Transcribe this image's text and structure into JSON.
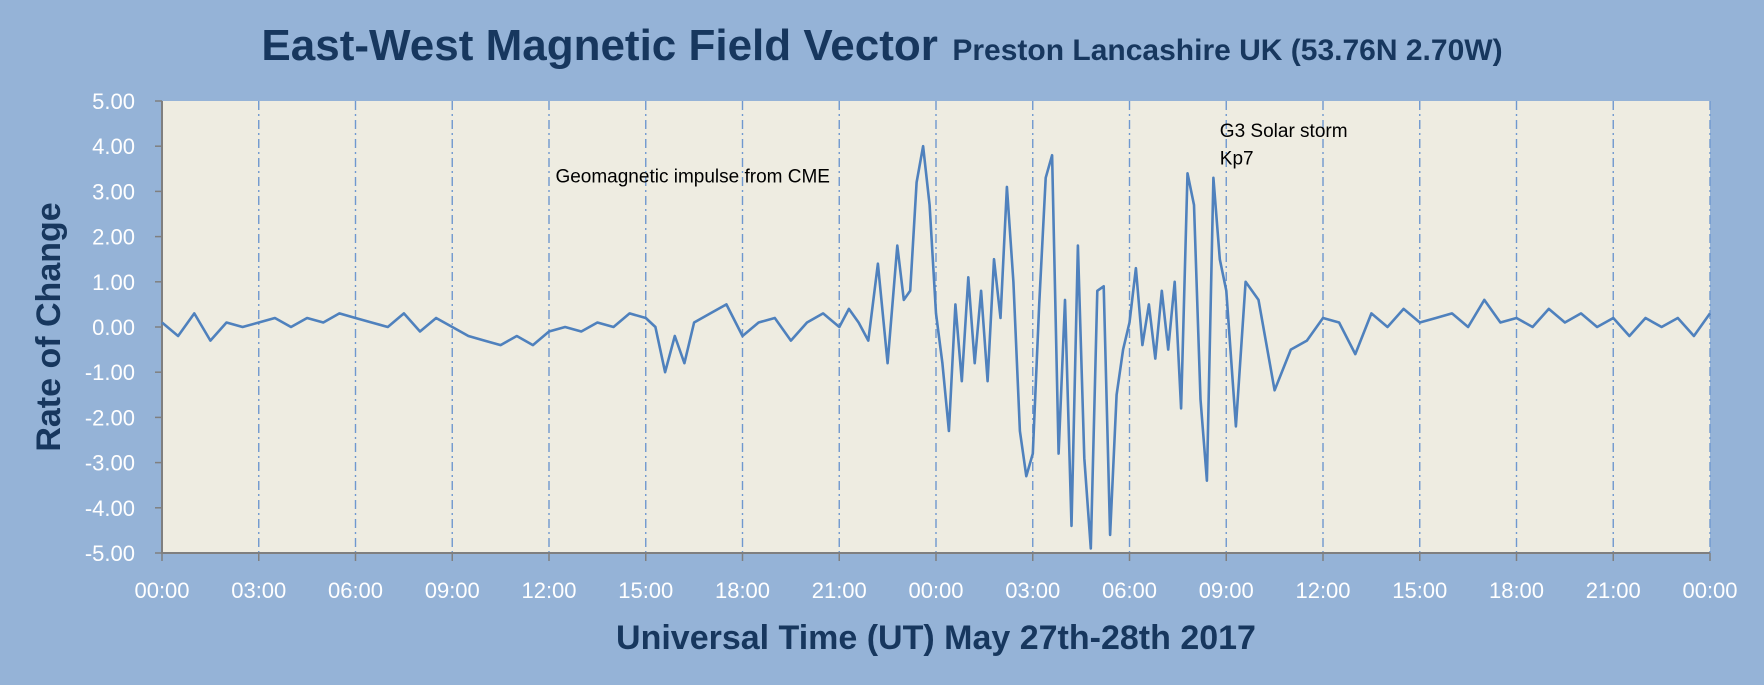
{
  "chart_data": {
    "type": "line",
    "title": "East-West Magnetic Field Vector",
    "subtitle": "Preston Lancashire UK (53.76N 2.70W)",
    "xlabel": "Universal Time (UT) May 27th-28th 2017",
    "ylabel": "Rate of Change",
    "x_ticks": [
      "00:00",
      "03:00",
      "06:00",
      "09:00",
      "12:00",
      "15:00",
      "18:00",
      "21:00",
      "00:00",
      "03:00",
      "06:00",
      "09:00",
      "12:00",
      "15:00",
      "18:00",
      "21:00",
      "00:00"
    ],
    "y_ticks": [
      "5.00",
      "4.00",
      "3.00",
      "2.00",
      "1.00",
      "0.00",
      "-1.00",
      "-2.00",
      "-3.00",
      "-4.00",
      "-5.00"
    ],
    "xlim_hours": [
      0,
      48
    ],
    "ylim": [
      -5,
      5
    ],
    "grid": "vertical dash-dot lines every 3 hours",
    "annotations": [
      {
        "text": "Geomagnetic impulse from CME",
        "x_hours": 12.2,
        "y": 3.2
      },
      {
        "text": "G3 Solar storm",
        "x_hours": 32.8,
        "y": 4.2
      },
      {
        "text": "Kp7",
        "x_hours": 32.8,
        "y": 3.6
      }
    ],
    "series": [
      {
        "color": "#4f81bd",
        "x_hours": [
          0,
          0.5,
          1,
          1.5,
          2,
          2.5,
          3,
          3.5,
          4,
          4.5,
          5,
          5.5,
          6,
          6.5,
          7,
          7.5,
          8,
          8.5,
          9,
          9.5,
          10,
          10.5,
          11,
          11.5,
          12,
          12.5,
          13,
          13.5,
          14,
          14.5,
          15,
          15.3,
          15.6,
          15.9,
          16.2,
          16.5,
          17,
          17.5,
          18,
          18.5,
          19,
          19.5,
          20,
          20.5,
          21,
          21.3,
          21.6,
          21.9,
          22.2,
          22.5,
          22.8,
          23.0,
          23.2,
          23.4,
          23.6,
          23.8,
          24.0,
          24.2,
          24.4,
          24.6,
          24.8,
          25.0,
          25.2,
          25.4,
          25.6,
          25.8,
          26.0,
          26.2,
          26.4,
          26.6,
          26.8,
          27.0,
          27.2,
          27.4,
          27.6,
          27.8,
          28.0,
          28.2,
          28.4,
          28.6,
          28.8,
          29.0,
          29.2,
          29.4,
          29.6,
          29.8,
          30.0,
          30.2,
          30.4,
          30.6,
          30.8,
          31.0,
          31.2,
          31.4,
          31.6,
          31.8,
          32.0,
          32.2,
          32.4,
          32.6,
          32.8,
          33.0,
          33.3,
          33.6,
          34,
          34.5,
          35,
          35.5,
          36,
          36.5,
          37,
          37.5,
          38,
          38.5,
          39,
          39.5,
          40,
          40.5,
          41,
          41.5,
          42,
          42.5,
          43,
          43.5,
          44,
          44.5,
          45,
          45.5,
          46,
          46.5,
          47,
          47.5,
          48
        ],
        "values": [
          0.1,
          -0.2,
          0.3,
          -0.3,
          0.1,
          0.0,
          0.1,
          0.2,
          0.0,
          0.2,
          0.1,
          0.3,
          0.2,
          0.1,
          0.0,
          0.3,
          -0.1,
          0.2,
          0.0,
          -0.2,
          -0.3,
          -0.4,
          -0.2,
          -0.4,
          -0.1,
          0.0,
          -0.1,
          0.1,
          0.0,
          0.3,
          0.2,
          0.0,
          -1.0,
          -0.2,
          -0.8,
          0.1,
          0.3,
          0.5,
          -0.2,
          0.1,
          0.2,
          -0.3,
          0.1,
          0.3,
          0.0,
          0.4,
          0.1,
          -0.3,
          1.4,
          -0.8,
          1.8,
          0.6,
          0.8,
          3.2,
          4.0,
          2.7,
          0.3,
          -0.8,
          -2.3,
          0.5,
          -1.2,
          1.1,
          -0.8,
          0.8,
          -1.2,
          1.5,
          0.2,
          3.1,
          1.0,
          -2.3,
          -3.3,
          -2.8,
          0.5,
          3.3,
          3.8,
          -2.8,
          0.6,
          -4.4,
          1.8,
          -2.9,
          -4.9,
          0.8,
          0.9,
          -4.6,
          -1.5,
          -0.5,
          0.1,
          1.3,
          -0.4,
          0.5,
          -0.7,
          0.8,
          -0.5,
          1.0,
          -1.8,
          3.4,
          2.7,
          -1.6,
          -3.4,
          3.3,
          1.5,
          0.8,
          -2.2,
          1.0,
          0.6,
          -1.4,
          -0.5,
          -0.3,
          0.2,
          0.1,
          -0.6,
          0.3,
          0.0,
          0.4,
          0.1,
          0.2,
          0.3,
          0.0,
          0.6,
          0.1,
          0.2,
          0.0,
          0.4,
          0.1,
          0.3,
          0.0,
          0.2,
          -0.2,
          0.2,
          0.0,
          0.2,
          -0.2,
          0.3
        ]
      }
    ]
  }
}
